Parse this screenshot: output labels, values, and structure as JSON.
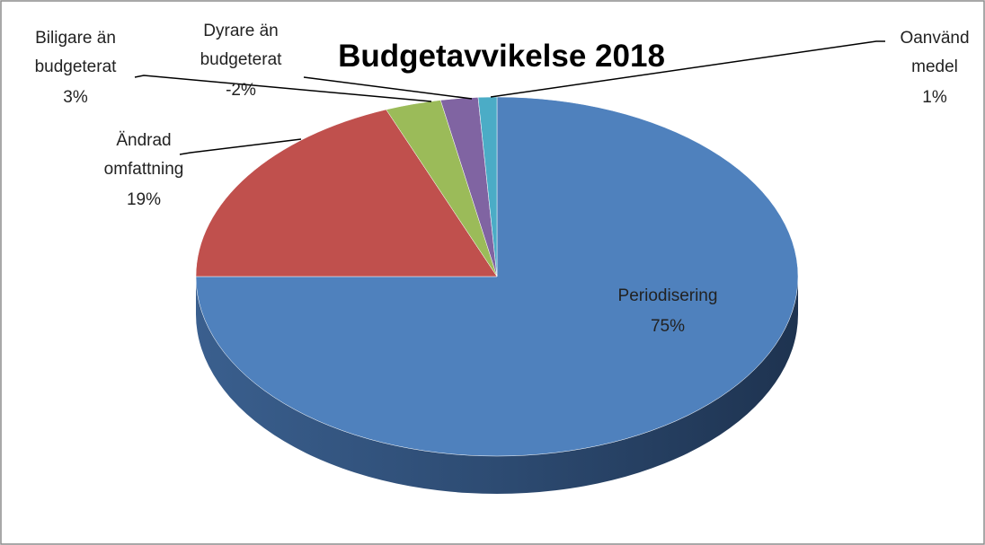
{
  "chart_data": {
    "type": "pie",
    "title": "Budgetavvikelse 2018",
    "categories": [
      "Periodisering",
      "Ändrad omfattning",
      "Biligare än budgeterat",
      "Dyrare än budgeterat",
      "Oanvänd medel"
    ],
    "values": [
      75,
      19,
      3,
      -2,
      1
    ],
    "value_labels": [
      "75%",
      "19%",
      "3%",
      "-2%",
      "1%"
    ],
    "colors": [
      "#4f81bd",
      "#c0504d",
      "#9bbb59",
      "#8064a2",
      "#4bacc6"
    ]
  }
}
